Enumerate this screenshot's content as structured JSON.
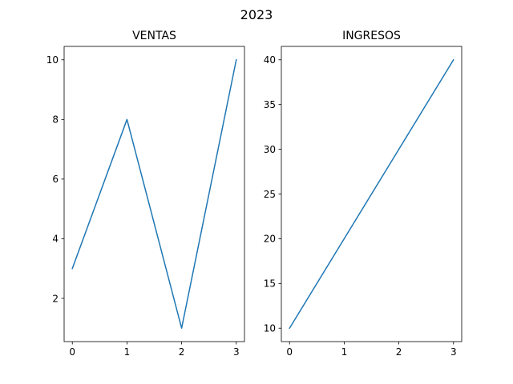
{
  "figure": {
    "suptitle": "2023"
  },
  "chart_data": [
    {
      "type": "line",
      "title": "VENTAS",
      "xlabel": "",
      "ylabel": "",
      "x": [
        0,
        1,
        2,
        3
      ],
      "series": [
        {
          "values": [
            3,
            8,
            1,
            10
          ],
          "color": "#1f77b4"
        }
      ],
      "xlim": [
        -0.15,
        3.15
      ],
      "ylim": [
        0.55,
        10.45
      ],
      "xticks": [
        0,
        1,
        2,
        3
      ],
      "yticks": [
        2,
        4,
        6,
        8,
        10
      ],
      "grid": false
    },
    {
      "type": "line",
      "title": "INGRESOS",
      "xlabel": "",
      "ylabel": "",
      "x": [
        0,
        1,
        2,
        3
      ],
      "series": [
        {
          "values": [
            10,
            20,
            30,
            40
          ],
          "color": "#1f77b4"
        }
      ],
      "xlim": [
        -0.15,
        3.15
      ],
      "ylim": [
        8.5,
        41.5
      ],
      "xticks": [
        0,
        1,
        2,
        3
      ],
      "yticks": [
        10,
        15,
        20,
        25,
        30,
        35,
        40
      ],
      "grid": false
    }
  ]
}
